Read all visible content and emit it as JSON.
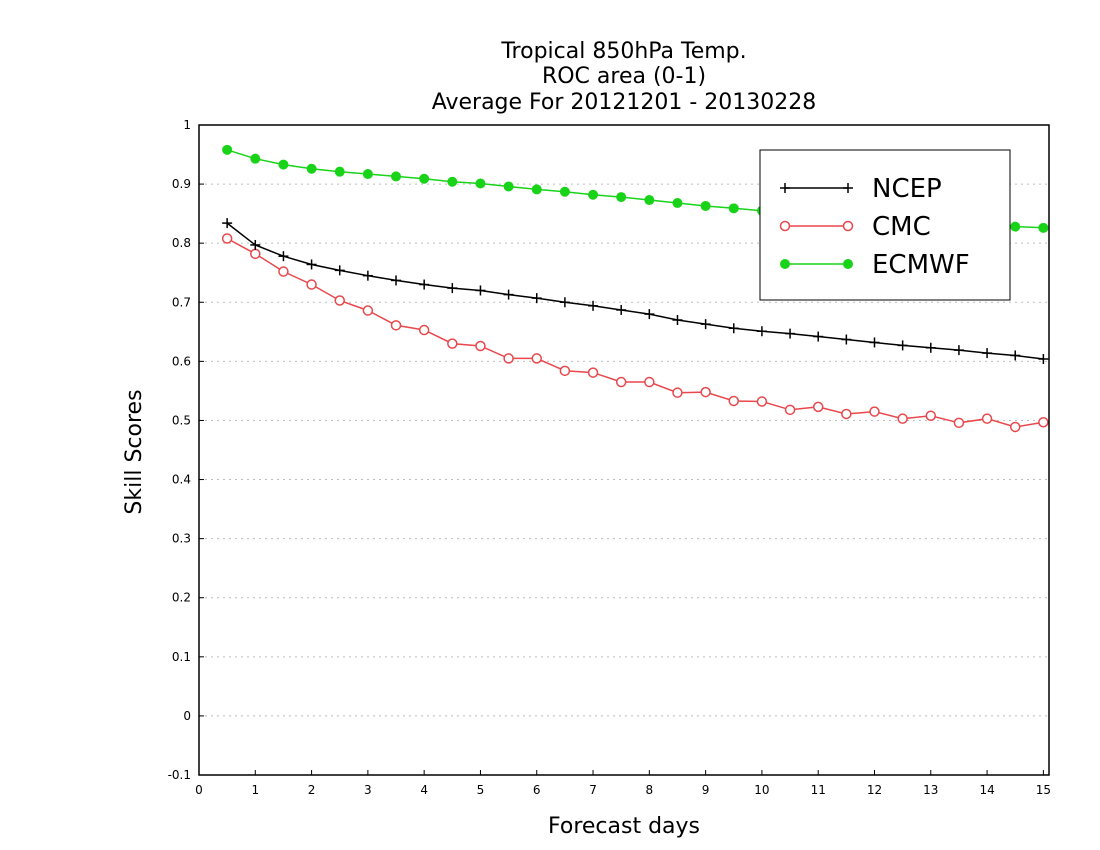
{
  "chart_data": {
    "type": "line",
    "title": [
      "Tropical 850hPa Temp.",
      "ROC area (0-1)",
      "Average For 20121201 - 20130228"
    ],
    "xlabel": "Forecast days",
    "ylabel": "Skill Scores",
    "xlim": [
      0,
      15.1
    ],
    "ylim": [
      -0.1,
      1.0
    ],
    "x_ticks": [
      0,
      1,
      2,
      3,
      4,
      5,
      6,
      7,
      8,
      9,
      10,
      11,
      12,
      13,
      14,
      15
    ],
    "x_tick_labels": [
      "0",
      "1",
      "2",
      "3",
      "4",
      "5",
      "6",
      "7",
      "8",
      "9",
      "10",
      "11",
      "12",
      "13",
      "14",
      "15"
    ],
    "y_ticks": [
      -0.1,
      0,
      0.1,
      0.2,
      0.3,
      0.4,
      0.5,
      0.6,
      0.7,
      0.8,
      0.9,
      1
    ],
    "y_tick_labels": [
      "-0.1",
      "0",
      "0.1",
      "0.2",
      "0.3",
      "0.4",
      "0.5",
      "0.6",
      "0.7",
      "0.8",
      "0.9",
      "1"
    ],
    "grid": "horizontal dotted",
    "legend_position": "top-right",
    "x": [
      0.5,
      1.0,
      1.5,
      2.0,
      2.5,
      3.0,
      3.5,
      4.0,
      4.5,
      5.0,
      5.5,
      6.0,
      6.5,
      7.0,
      7.5,
      8.0,
      8.5,
      9.0,
      9.5,
      10.0,
      10.5,
      11.0,
      11.5,
      12.0,
      12.5,
      13.0,
      13.5,
      14.0,
      14.5,
      15.0
    ],
    "series": [
      {
        "name": "NCEP",
        "color": "#000000",
        "marker": "plus",
        "values": [
          0.834,
          0.797,
          0.778,
          0.764,
          0.754,
          0.745,
          0.737,
          0.73,
          0.724,
          0.72,
          0.713,
          0.707,
          0.7,
          0.694,
          0.687,
          0.68,
          0.67,
          0.663,
          0.656,
          0.651,
          0.647,
          0.642,
          0.637,
          0.632,
          0.627,
          0.623,
          0.619,
          0.614,
          0.61,
          0.604
        ]
      },
      {
        "name": "CMC",
        "color": "#e8474b",
        "marker": "open-circle",
        "values": [
          0.808,
          0.782,
          0.752,
          0.73,
          0.703,
          0.686,
          0.661,
          0.653,
          0.63,
          0.626,
          0.605,
          0.605,
          0.584,
          0.581,
          0.565,
          0.565,
          0.547,
          0.548,
          0.533,
          0.532,
          0.518,
          0.523,
          0.511,
          0.515,
          0.503,
          0.508,
          0.496,
          0.503,
          0.489,
          0.497
        ]
      },
      {
        "name": "ECMWF",
        "color": "#19d319",
        "marker": "filled-circle",
        "values": [
          0.958,
          0.943,
          0.933,
          0.926,
          0.921,
          0.917,
          0.913,
          0.909,
          0.904,
          0.901,
          0.896,
          0.891,
          0.887,
          0.882,
          0.878,
          0.873,
          0.868,
          0.863,
          0.859,
          0.855,
          0.851,
          0.848,
          0.845,
          0.842,
          0.839,
          0.836,
          0.833,
          0.83,
          0.828,
          0.826
        ]
      }
    ]
  }
}
